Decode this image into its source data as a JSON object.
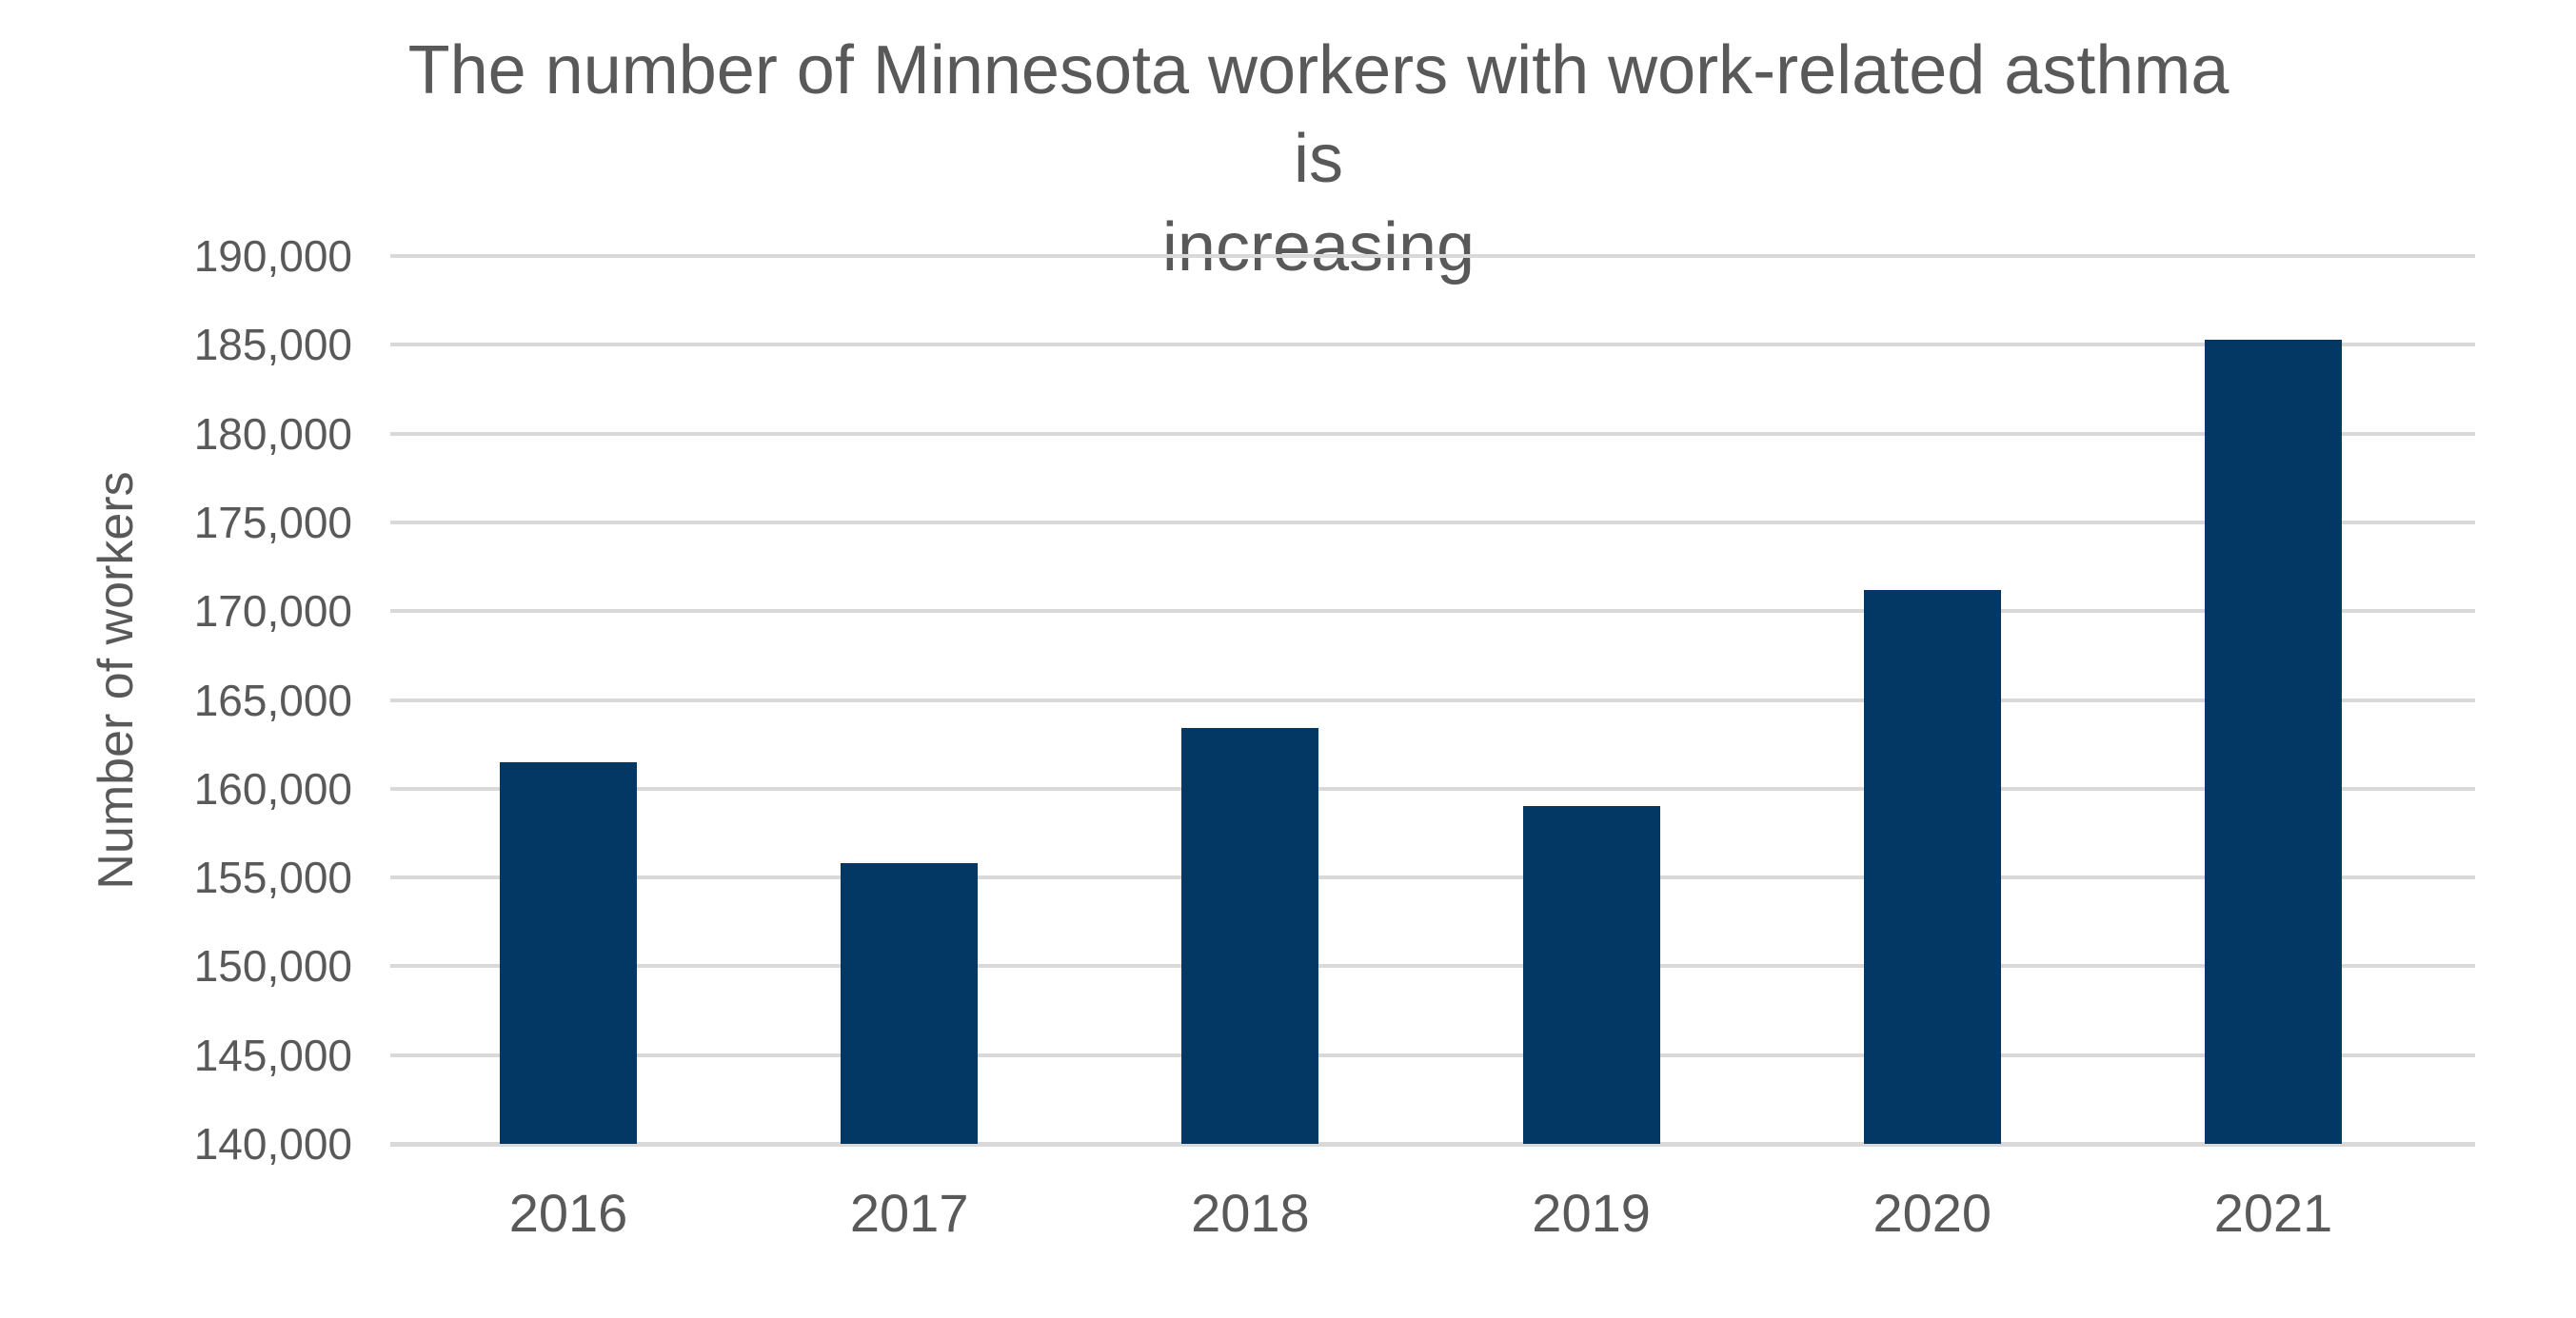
{
  "title_lines": [
    "The number of Minnesota workers with work-related asthma is",
    "increasing"
  ],
  "chart_data": {
    "type": "bar",
    "title": "The number of Minnesota workers with work-related asthma is increasing",
    "categories": [
      "2016",
      "2017",
      "2018",
      "2019",
      "2020",
      "2021"
    ],
    "values": [
      161500,
      155800,
      163400,
      159000,
      171200,
      185300
    ],
    "xlabel": "",
    "ylabel": "Number of workers",
    "ylim": [
      140000,
      190000
    ],
    "ytick_step": 5000,
    "ytick_labels": [
      "140,000",
      "145,000",
      "150,000",
      "155,000",
      "160,000",
      "165,000",
      "170,000",
      "175,000",
      "180,000",
      "185,000",
      "190,000"
    ],
    "grid": true,
    "legend": "none",
    "bar_color": "#033865",
    "grid_color": "#d9d9d9",
    "text_color": "#595959"
  }
}
